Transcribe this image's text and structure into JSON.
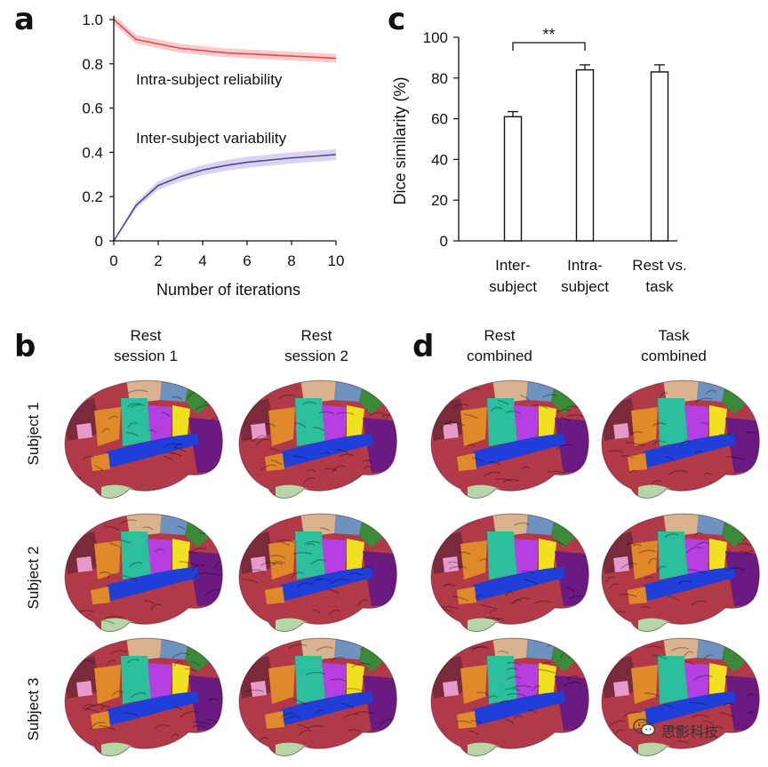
{
  "panels": {
    "a": "a",
    "b": "b",
    "c": "c",
    "d": "d"
  },
  "chart_data": [
    {
      "type": "line",
      "panel": "a",
      "xlabel": "Number of iterations",
      "ylabel": "",
      "xlim": [
        0,
        10
      ],
      "ylim": [
        0,
        1.0
      ],
      "x_ticks": [
        "0",
        "2",
        "4",
        "6",
        "8",
        "10"
      ],
      "y_ticks": [
        "0",
        "0.2",
        "0.4",
        "0.6",
        "0.8",
        "1.0"
      ],
      "x": [
        0,
        1,
        2,
        3,
        4,
        5,
        6,
        7,
        8,
        9,
        10
      ],
      "series": [
        {
          "name": "Intra-subject reliability",
          "color": "#e8474c",
          "band_color": "#f6b9bb",
          "values": [
            1.0,
            0.91,
            0.89,
            0.87,
            0.86,
            0.85,
            0.845,
            0.84,
            0.835,
            0.83,
            0.825
          ],
          "band": [
            0.02,
            0.02,
            0.02,
            0.02,
            0.02,
            0.02,
            0.02,
            0.02,
            0.02,
            0.02,
            0.02
          ]
        },
        {
          "name": "Inter-subject variability",
          "color": "#4a4a9c",
          "band_color": "#cfc3ea",
          "values": [
            0.0,
            0.16,
            0.25,
            0.29,
            0.32,
            0.34,
            0.355,
            0.365,
            0.375,
            0.382,
            0.39
          ],
          "band": [
            0.0,
            0.015,
            0.02,
            0.022,
            0.023,
            0.024,
            0.025,
            0.025,
            0.025,
            0.025,
            0.025
          ]
        }
      ]
    },
    {
      "type": "bar",
      "panel": "c",
      "ylabel": "Dice similarity (%)",
      "ylim": [
        0,
        100
      ],
      "y_ticks": [
        "0",
        "20",
        "40",
        "60",
        "80",
        "100"
      ],
      "categories": [
        [
          "Inter-",
          "subject"
        ],
        [
          "Intra-",
          "subject"
        ],
        [
          "Rest vs.",
          "task"
        ]
      ],
      "values": [
        61,
        84,
        83
      ],
      "errors": [
        2.5,
        2.5,
        3.5
      ],
      "significance": {
        "from": 0,
        "to": 1,
        "label": "**"
      }
    }
  ],
  "panel_b": {
    "columns": [
      [
        "Rest",
        "session 1"
      ],
      [
        "Rest",
        "session 2"
      ]
    ]
  },
  "panel_d": {
    "columns": [
      [
        "Rest",
        "combined"
      ],
      [
        "Task",
        "combined"
      ]
    ]
  },
  "rows": [
    "Subject 1",
    "Subject 2",
    "Subject 3"
  ],
  "watermark": "思影科技",
  "colors": {
    "brain_base": "#b23a48",
    "blue": "#1f3fd8",
    "teal": "#2bbf9b",
    "magenta": "#b53fe0",
    "orange": "#e0892a",
    "yellow": "#f0e020",
    "purple": "#6a1a80",
    "tan": "#d8b38e",
    "green": "#3a8a3a",
    "pale_green": "#b7d6a8",
    "steel": "#6f93c0",
    "pink": "#e69acb",
    "maroon": "#7a2a3a"
  }
}
